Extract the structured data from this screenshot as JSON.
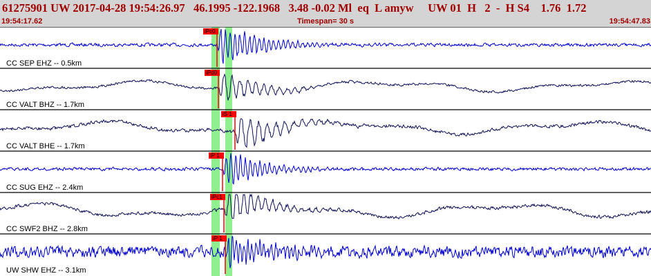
{
  "header": {
    "event_line": "61275901 UW 2017-04-28 19:54:26.97   46.1995 -122.1968   3.48 -0.02 Ml  eq  L amyw     UW 01  H   2  -  H S4    1.76  1.72",
    "time_start": "19:54:17.62",
    "timespan": "Timespan=  30 s",
    "time_end": "19:54:47.83"
  },
  "colors": {
    "background": "#ffffff",
    "header_bg": "#d4d4d4",
    "header_text": "#a00000",
    "trace_blue": "#0000cc",
    "trace_navy": "#10105a",
    "pick_red": "#ff0000",
    "window_green": "#90f090"
  },
  "traces": [
    {
      "label": "CC SEP EHZ -- 0.5km",
      "pick": "iPc0",
      "color": "#0000cc",
      "onset": 314,
      "amp": 30,
      "noise": 2,
      "drift": 0,
      "freq": 0.9
    },
    {
      "label": "CC VALT BHZ -- 1.7km",
      "pick": "iPd0",
      "color": "#10105a",
      "onset": 316,
      "amp": 22,
      "noise": 1.5,
      "drift": 9,
      "freq": 0.55
    },
    {
      "label": "CC VALT BHE -- 1.7km",
      "pick": "iS 1",
      "color": "#10105a",
      "onset": 340,
      "amp": 27,
      "noise": 2,
      "drift": 11,
      "freq": 0.5
    },
    {
      "label": "CC SUG EHZ -- 2.4km",
      "pick": "iP 1",
      "color": "#0000cc",
      "onset": 322,
      "amp": 26,
      "noise": 2,
      "drift": 0,
      "freq": 0.9
    },
    {
      "label": "CC SWF2 BHZ -- 2.8km",
      "pick": "iPc1",
      "color": "#10105a",
      "onset": 324,
      "amp": 27,
      "noise": 2,
      "drift": 12,
      "freq": 0.6
    },
    {
      "label": "UW SHW EHZ -- 3.1km",
      "pick": "iP 1",
      "color": "#0000cc",
      "onset": 326,
      "amp": 23,
      "noise": 7,
      "drift": 0,
      "freq": 1.1
    }
  ]
}
